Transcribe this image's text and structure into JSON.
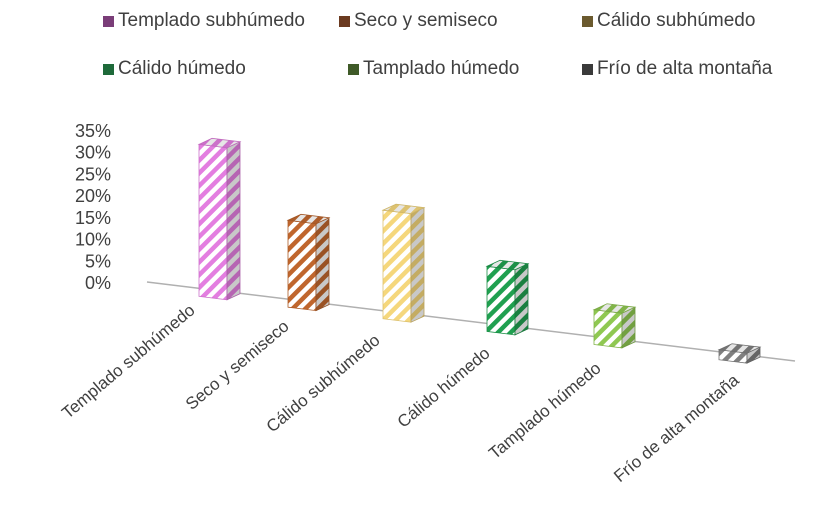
{
  "chart_data": {
    "type": "bar",
    "title": "",
    "xlabel": "",
    "ylabel": "",
    "ylim": [
      0,
      35
    ],
    "y_ticks": [
      "0%",
      "5%",
      "10%",
      "15%",
      "20%",
      "25%",
      "30%",
      "35%"
    ],
    "grid": false,
    "legend_position": "top",
    "categories": [
      "Templado subhúmedo",
      "Seco y semiseco",
      "Cálido subhúmedo",
      "Cálido húmedo",
      "Tamplado húmedo",
      "Frío de alta montaña"
    ],
    "legend": [
      "Templado subhúmedo",
      "Seco y semiseco",
      "Cálido subhúmedo",
      "Cálido húmedo",
      "Tamplado húmedo",
      "Frío de alta montaña"
    ],
    "values": [
      35,
      20,
      25,
      15,
      8,
      1
    ],
    "unit": "%",
    "colors": [
      "#e37ee0",
      "#c0662d",
      "#f5d77c",
      "#20a050",
      "#8fc851",
      "#808080"
    ],
    "legend_swatch_colors": [
      "#7a3d78",
      "#6b3a20",
      "#6b5a2e",
      "#1e6a3a",
      "#3f5a28",
      "#3a3a3a"
    ]
  }
}
